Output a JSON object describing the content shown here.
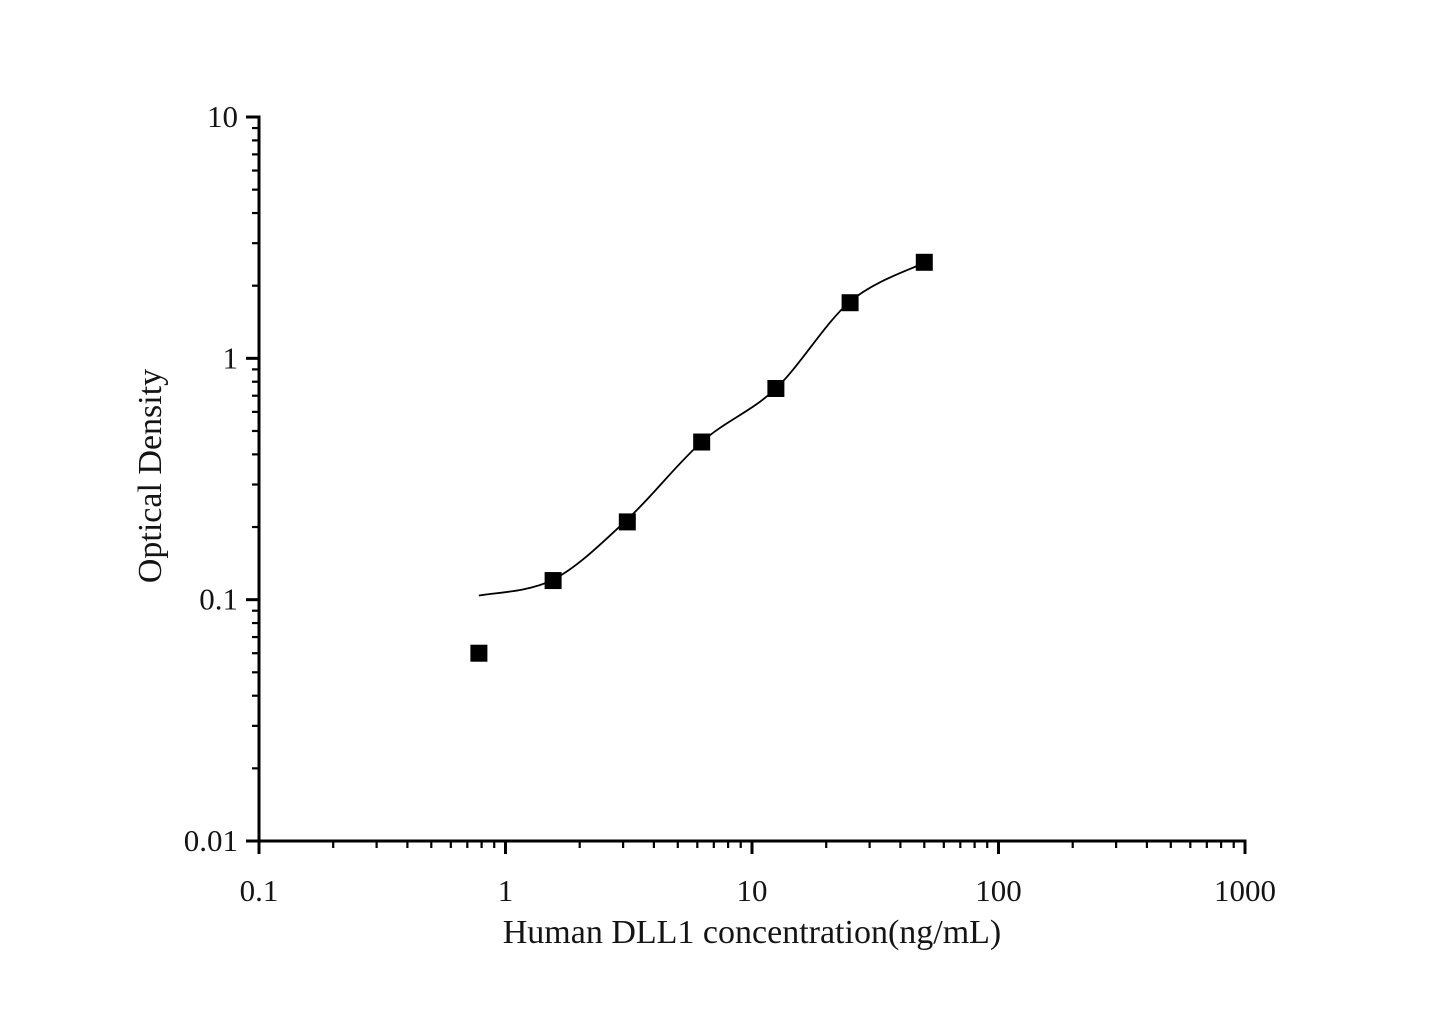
{
  "chart_data": {
    "type": "scatter",
    "title": "",
    "xlabel": "Human DLL1 concentration(ng/mL)",
    "ylabel": "Optical Density",
    "x_scale": "log",
    "y_scale": "log",
    "xlim": [
      0.1,
      1000
    ],
    "ylim": [
      0.01,
      10
    ],
    "x_ticks": [
      0.1,
      1,
      10,
      100,
      1000
    ],
    "y_ticks": [
      0.01,
      0.1,
      1,
      10
    ],
    "grid": false,
    "legend": "none",
    "series": [
      {
        "name": "standard-curve-points",
        "marker": "square",
        "marker_color": "#000000",
        "x": [
          0.78,
          1.56,
          3.12,
          6.25,
          12.5,
          25,
          50
        ],
        "y": [
          0.06,
          0.12,
          0.21,
          0.45,
          0.75,
          1.7,
          2.5
        ]
      }
    ],
    "fit_curve": {
      "name": "fitted-curve",
      "color": "#000000",
      "x": [
        0.78,
        1.56,
        3.12,
        6.25,
        12.5,
        25,
        50
      ],
      "y": [
        0.104,
        0.121,
        0.215,
        0.45,
        0.75,
        1.72,
        2.49
      ]
    },
    "colors": {
      "foreground": "#000000",
      "background": "#ffffff"
    }
  }
}
